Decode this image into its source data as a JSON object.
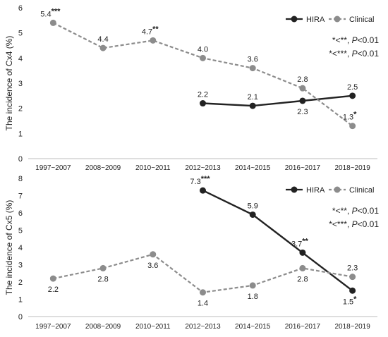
{
  "chart_data": [
    {
      "type": "line",
      "ylabel": "The incidence of Cx4 (%)",
      "ylim": [
        0,
        6
      ],
      "yticks": [
        "0",
        "1",
        "2",
        "3",
        "4",
        "5",
        "6"
      ],
      "categories": [
        "1997~2007",
        "2008~2009",
        "2010~2011",
        "2012~2013",
        "2014~2015",
        "2016~2017",
        "2018~2019"
      ],
      "legend": {
        "position": "top-right"
      },
      "series": [
        {
          "name": "HIRA",
          "color": "#222222",
          "dashed": false,
          "values": [
            null,
            null,
            null,
            2.2,
            2.1,
            2.3,
            2.5
          ],
          "labels": [
            null,
            null,
            null,
            "2.2",
            "2.1",
            "2.3",
            "2.5"
          ],
          "stars": [
            null,
            null,
            null,
            null,
            null,
            null,
            null
          ],
          "label_pos": [
            null,
            null,
            null,
            "above",
            "above",
            "below",
            "above"
          ]
        },
        {
          "name": "Clinical",
          "color": "#8c8c8c",
          "dashed": true,
          "values": [
            5.4,
            4.4,
            4.7,
            4.0,
            3.6,
            2.8,
            1.3
          ],
          "labels": [
            "5.4",
            "4.4",
            "4.7",
            "4.0",
            "3.6",
            "2.8",
            "1.3"
          ],
          "stars": [
            "***",
            null,
            "**",
            null,
            null,
            null,
            "*"
          ],
          "label_pos": [
            "above",
            "above",
            "above",
            "above",
            "above",
            "above",
            "above"
          ]
        }
      ],
      "annotations": [
        {
          "sym": "*<**, ",
          "p": "P",
          "rest": "<0.01"
        },
        {
          "sym": "*<***, ",
          "p": "P",
          "rest": "<0.01"
        }
      ]
    },
    {
      "type": "line",
      "ylabel": "The incidence of Cx5 (%)",
      "ylim": [
        0,
        8
      ],
      "yticks": [
        "0",
        "1",
        "2",
        "3",
        "4",
        "5",
        "6",
        "7",
        "8"
      ],
      "categories": [
        "1997~2007",
        "2008~2009",
        "2010~2011",
        "2012~2013",
        "2014~2015",
        "2016~2017",
        "2018~2019"
      ],
      "legend": {
        "position": "top-right"
      },
      "series": [
        {
          "name": "HIRA",
          "color": "#222222",
          "dashed": false,
          "values": [
            null,
            null,
            null,
            7.3,
            5.9,
            3.7,
            1.5
          ],
          "labels": [
            null,
            null,
            null,
            "7.3",
            "5.9",
            "3.7",
            "1.5"
          ],
          "stars": [
            null,
            null,
            null,
            "***",
            null,
            "**",
            "*"
          ],
          "label_pos": [
            null,
            null,
            null,
            "above",
            "above",
            "above",
            "below"
          ]
        },
        {
          "name": "Clinical",
          "color": "#8c8c8c",
          "dashed": true,
          "values": [
            2.2,
            2.8,
            3.6,
            1.4,
            1.8,
            2.8,
            2.3
          ],
          "labels": [
            "2.2",
            "2.8",
            "3.6",
            "1.4",
            "1.8",
            "2.8",
            "2.3"
          ],
          "stars": [
            null,
            null,
            null,
            null,
            null,
            null,
            null
          ],
          "label_pos": [
            "below",
            "below",
            "below",
            "below",
            "below",
            "below",
            "above"
          ]
        }
      ],
      "annotations": [
        {
          "sym": "*<**, ",
          "p": "P",
          "rest": "<0.01"
        },
        {
          "sym": "*<***, ",
          "p": "P",
          "rest": "<0.01"
        }
      ]
    }
  ]
}
